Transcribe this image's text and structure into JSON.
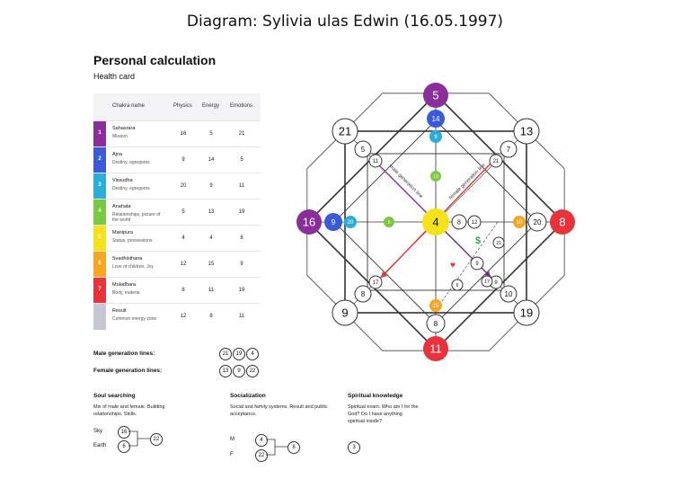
{
  "title": "Diagram: Sylivia ulas Edwin (16.05.1997)",
  "heading": "Personal calculation",
  "subheading": "Health card",
  "table": {
    "headers": [
      "Chakra name",
      "Physics",
      "Energy",
      "Emotions"
    ],
    "rows": [
      {
        "num": "1",
        "name": "Sahasrara",
        "sub": "Mission",
        "physics": "16",
        "energy": "5",
        "emotions": "21",
        "color": "#8a2f9a"
      },
      {
        "num": "2",
        "name": "Ajna",
        "sub": "Destiny, egregores",
        "physics": "9",
        "energy": "14",
        "emotions": "5",
        "color": "#3a5ad8"
      },
      {
        "num": "3",
        "name": "Vissudha",
        "sub": "Destiny, egregores",
        "physics": "20",
        "energy": "9",
        "emotions": "11",
        "color": "#2aaed8"
      },
      {
        "num": "4",
        "name": "Anahata",
        "sub": "Relationships, picture of the world",
        "physics": "5",
        "energy": "13",
        "emotions": "19",
        "color": "#7ac943"
      },
      {
        "num": "5",
        "name": "Manipura",
        "sub": "Status, possessions",
        "physics": "4",
        "energy": "4",
        "emotions": "8",
        "color": "#f5e21a"
      },
      {
        "num": "6",
        "name": "Svadhisthana",
        "sub": "Love of children, Joy",
        "physics": "12",
        "energy": "15",
        "emotions": "9",
        "color": "#f5a623"
      },
      {
        "num": "7",
        "name": "Muladhara",
        "sub": "Body, materia",
        "physics": "8",
        "energy": "11",
        "emotions": "19",
        "color": "#e8323c"
      },
      {
        "num": "",
        "name": "Result",
        "sub": "Common energy zone",
        "physics": "12",
        "energy": "8",
        "emotions": "11",
        "color": "#c5c7d3"
      }
    ]
  },
  "male_lines": {
    "label": "Male generation lines:",
    "values": [
      "21",
      "19",
      "4"
    ]
  },
  "female_lines": {
    "label": "Female generation lines:",
    "values": [
      "13",
      "9",
      "22"
    ]
  },
  "soul": {
    "title": "Soul searching",
    "text": "Mix of male and female. Building relationships. Skills.",
    "sky_label": "Sky",
    "sky": "16",
    "earth_label": "Earth",
    "earth": "6",
    "sum": "22"
  },
  "social": {
    "title": "Socialization",
    "text": "Social and family systems. Result and public acceptance.",
    "m_label": "M",
    "m": "4",
    "f_label": "F",
    "f": "22",
    "sum": "8"
  },
  "spiritual": {
    "title": "Spiritual knowledge",
    "text": "Spiritual exam. Who am I for the God? Do I have anything spiritual inside?",
    "value": "3"
  },
  "diagram": {
    "top": "5",
    "top2": "14",
    "top3": "9",
    "left": "16",
    "left2": "9",
    "left3": "20",
    "right": "8",
    "right2": "20",
    "right3": "10",
    "bottom": "11",
    "bottom2": "8",
    "bottom3": "15",
    "center": "4",
    "tl": "21",
    "tl2": "5",
    "tl3": "11",
    "tr": "13",
    "tr2": "7",
    "tr3": "21",
    "bl": "9",
    "bl2": "8",
    "bl3": "17",
    "br": "19",
    "br2": "10",
    "br3": "9",
    "c_right1": "8",
    "c_right2": "12",
    "r21": "21",
    "r9": "9",
    "r6": "6",
    "r17": "17",
    "anahata_v": "13",
    "anahata_h": "5",
    "male_line_label": "male generation line",
    "female_line_label": "female generation line",
    "colors": {
      "purple": "#8a2f9a",
      "blue": "#3a5ad8",
      "cyan": "#2aaed8",
      "green": "#7ac943",
      "yellow": "#f5e21a",
      "orange": "#f5a623",
      "red": "#e8323c"
    }
  }
}
